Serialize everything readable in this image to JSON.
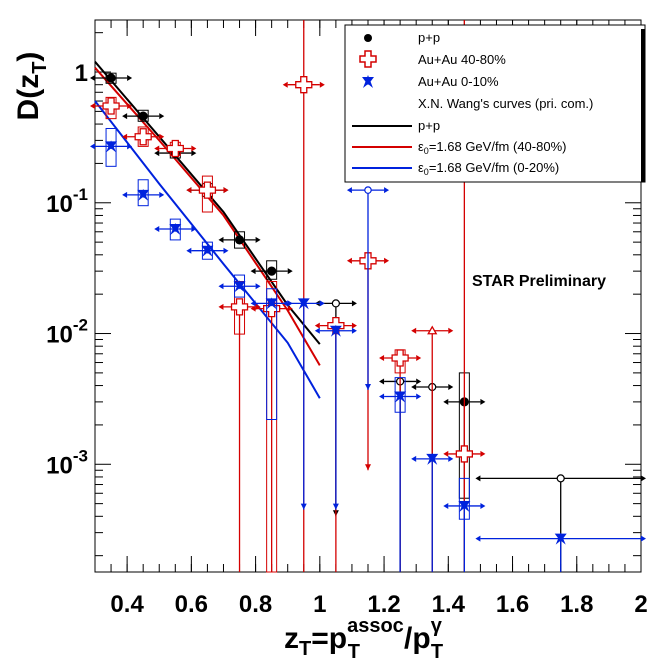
{
  "chart_data": {
    "type": "scatter",
    "title": "",
    "xlabel": {
      "base": "z",
      "base_sub": "T",
      "eq": "=p",
      "sup1": "assoc",
      "sub1": "T",
      "slash": "/p",
      "sup2": "γ",
      "sub2": "T"
    },
    "ylabel": {
      "base": "D(z",
      "sub": "T",
      "close": ")"
    },
    "xlim": [
      0.3,
      2.0
    ],
    "ylim": [
      0.00015,
      2.5
    ],
    "yscale": "log",
    "x_ticks": [
      "0.4",
      "0.6",
      "0.8",
      "1",
      "1.2",
      "1.4",
      "1.6",
      "1.8",
      "2"
    ],
    "x_tick_values": [
      0.4,
      0.6,
      0.8,
      1.0,
      1.2,
      1.4,
      1.6,
      1.8,
      2.0
    ],
    "y_ticks": [
      {
        "value": 1,
        "base": "1",
        "exp": ""
      },
      {
        "value": 0.1,
        "base": "10",
        "exp": "-1"
      },
      {
        "value": 0.01,
        "base": "10",
        "exp": "-2"
      },
      {
        "value": 0.001,
        "base": "10",
        "exp": "-3"
      }
    ],
    "annotation": "STAR Preliminary",
    "legend": {
      "position": "top-right",
      "entries": [
        {
          "label": "p+p",
          "kind": "marker-circle",
          "color": "#000000"
        },
        {
          "label": "Au+Au 40-80%",
          "kind": "marker-cross",
          "color": "#d40000"
        },
        {
          "label": "Au+Au 0-10%",
          "kind": "marker-star",
          "color": "#0022dd"
        },
        {
          "label": "X.N. Wang's curves (pri. com.)",
          "kind": "header",
          "color": "#000000"
        },
        {
          "label": "p+p",
          "kind": "line",
          "color": "#000000"
        },
        {
          "label": "ε0=1.68 GeV/fm (40-80%)",
          "label_eps": "ε",
          "label_sub": "0",
          "label_rest": "=1.68 GeV/fm (40-80%)",
          "kind": "line",
          "color": "#d40000"
        },
        {
          "label": "ε0=1.68 GeV/fm (0-20%)",
          "label_eps": "ε",
          "label_sub": "0",
          "label_rest": "=1.68 GeV/fm (0-20%)",
          "kind": "line",
          "color": "#0022dd"
        }
      ]
    },
    "series": [
      {
        "name": "p+p",
        "marker": "circle",
        "color": "#000000",
        "points": [
          {
            "x": 0.35,
            "y": 0.9,
            "sys": [
              0.82,
              0.98
            ]
          },
          {
            "x": 0.45,
            "y": 0.46,
            "sys": [
              0.42,
              0.51
            ]
          },
          {
            "x": 0.55,
            "y": 0.24,
            "sys": [
              0.22,
              0.27
            ]
          },
          {
            "x": 0.65,
            "y": 0.125,
            "sys": [
              0.112,
              0.14
            ]
          },
          {
            "x": 0.75,
            "y": 0.052,
            "sys": [
              0.045,
              0.06
            ]
          },
          {
            "x": 0.85,
            "y": 0.03,
            "sys": [
              0.026,
              0.036
            ]
          },
          {
            "x": 1.05,
            "y": 0.017,
            "open": true,
            "ylo": 0.0004
          },
          {
            "x": 1.25,
            "y": 0.0043,
            "open": true,
            "ylo": 0.00015
          },
          {
            "x": 1.35,
            "y": 0.0039,
            "open": true,
            "ylo": 0.00015
          },
          {
            "x": 1.45,
            "y": 0.003,
            "sys": [
              0.00055,
              0.005
            ],
            "ylo": 0.00015
          },
          {
            "x": 1.75,
            "y": 0.00078,
            "open": true,
            "ylo": 0.00015,
            "xerr": 0.25
          }
        ]
      },
      {
        "name": "Au+Au 40-80%",
        "marker": "cross",
        "color": "#d40000",
        "points": [
          {
            "x": 0.35,
            "y": 0.55,
            "sys": [
              0.44,
              0.64
            ]
          },
          {
            "x": 0.45,
            "y": 0.32,
            "sys": [
              0.27,
              0.38
            ]
          },
          {
            "x": 0.55,
            "y": 0.26,
            "sys": [
              0.23,
              0.29
            ]
          },
          {
            "x": 0.65,
            "y": 0.125,
            "sys": [
              0.085,
              0.16
            ]
          },
          {
            "x": 0.75,
            "y": 0.016,
            "sys": [
              0.0099,
              0.025
            ],
            "ylo": 0.00015
          },
          {
            "x": 0.85,
            "y": 0.0155,
            "sys": [
              0.00015,
              0.025
            ],
            "ylo": 0.00015
          },
          {
            "x": 0.95,
            "y": 0.8,
            "ylo": 0.00015,
            "yhi": 2.5
          },
          {
            "x": 1.05,
            "y": 0.0115,
            "ylo": 0.00015
          },
          {
            "x": 1.15,
            "y": 0.036,
            "ylo": 0.0009
          },
          {
            "x": 1.25,
            "y": 0.0065,
            "sys": [
              0.005,
              0.0075
            ],
            "ylo": 0.00015
          },
          {
            "x": 1.35,
            "y": 0.0105,
            "open": true,
            "ylo": 0.00015
          },
          {
            "x": 1.45,
            "y": 0.0012,
            "ylo": 0.00015,
            "yhi": 2.5
          }
        ]
      },
      {
        "name": "Au+Au 0-10%",
        "marker": "star",
        "color": "#0022dd",
        "points": [
          {
            "x": 0.35,
            "y": 0.27,
            "sys": [
              0.19,
              0.37
            ]
          },
          {
            "x": 0.45,
            "y": 0.115,
            "sys": [
              0.095,
              0.15
            ]
          },
          {
            "x": 0.55,
            "y": 0.063,
            "sys": [
              0.052,
              0.075
            ]
          },
          {
            "x": 0.65,
            "y": 0.043,
            "sys": [
              0.037,
              0.05
            ]
          },
          {
            "x": 0.75,
            "y": 0.023,
            "sys": [
              0.019,
              0.028
            ]
          },
          {
            "x": 0.85,
            "y": 0.017,
            "sys": [
              0.0022,
              0.022
            ]
          },
          {
            "x": 0.95,
            "y": 0.017,
            "ylo": 0.00045
          },
          {
            "x": 1.05,
            "y": 0.0105,
            "ylo": 0.00045
          },
          {
            "x": 1.15,
            "y": 0.125,
            "open": true,
            "ylo": 0.0037
          },
          {
            "x": 1.25,
            "y": 0.0033,
            "sys": [
              0.0025,
              0.0046
            ],
            "ylo": 0.00015
          },
          {
            "x": 1.35,
            "y": 0.0011,
            "ylo": 0.00015
          },
          {
            "x": 1.45,
            "y": 0.00048,
            "sys": [
              0.00038,
              0.00078
            ],
            "ylo": 0.00015
          },
          {
            "x": 1.75,
            "y": 0.00027,
            "ylo": 0.00015,
            "xerr": 0.25
          }
        ]
      }
    ],
    "theory_curves": [
      {
        "name": "p+p",
        "color": "#000000",
        "x": [
          0.3,
          0.5,
          0.7,
          0.9,
          1.0
        ],
        "y": [
          1.2,
          0.32,
          0.085,
          0.0165,
          0.0083
        ]
      },
      {
        "name": "ε0=1.68 GeV/fm (40-80%)",
        "color": "#d40000",
        "x": [
          0.3,
          0.5,
          0.7,
          0.9,
          1.0
        ],
        "y": [
          1.08,
          0.3,
          0.08,
          0.015,
          0.0057
        ]
      },
      {
        "name": "ε0=1.68 GeV/fm (0-20%)",
        "color": "#0022dd",
        "x": [
          0.3,
          0.5,
          0.7,
          0.9,
          1.0
        ],
        "y": [
          0.6,
          0.14,
          0.034,
          0.0085,
          0.0032
        ]
      }
    ]
  }
}
